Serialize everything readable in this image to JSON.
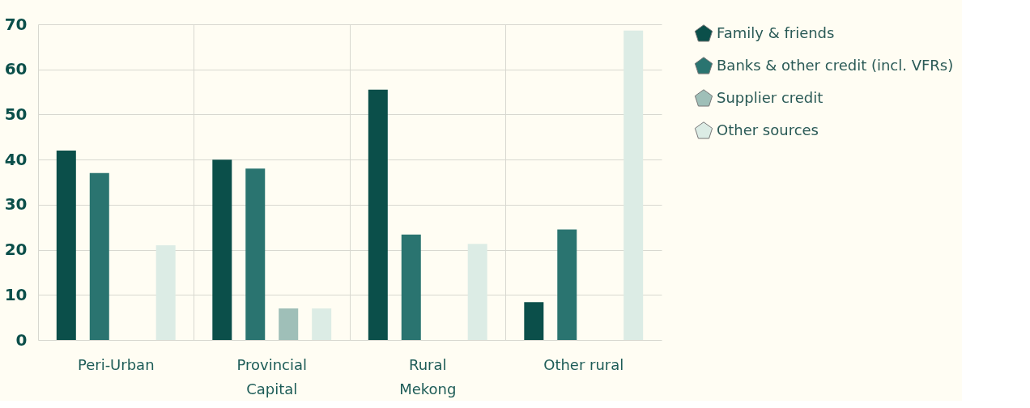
{
  "chart_data": {
    "type": "bar",
    "categories": [
      "Peri-Urban",
      "Provincial Capital",
      "Rural Mekong",
      "Other rural"
    ],
    "series": [
      {
        "name": "Family & friends",
        "color": "#0b4f4a",
        "values": [
          42,
          40,
          55.5,
          8.4
        ]
      },
      {
        "name": "Banks & other credit (incl. VFRs)",
        "color": "#2a7470",
        "values": [
          37,
          38,
          23.4,
          24.5
        ]
      },
      {
        "name": "Supplier credit",
        "color": "#9fbfb8",
        "values": [
          null,
          7,
          null,
          null
        ]
      },
      {
        "name": "Other sources",
        "color": "#dcece5",
        "values": [
          21,
          7,
          21.3,
          68.6
        ]
      }
    ],
    "ylim": [
      0,
      70
    ],
    "yticks": [
      0,
      10,
      20,
      30,
      40,
      50,
      60,
      70
    ],
    "grid": true,
    "legend": "right"
  }
}
